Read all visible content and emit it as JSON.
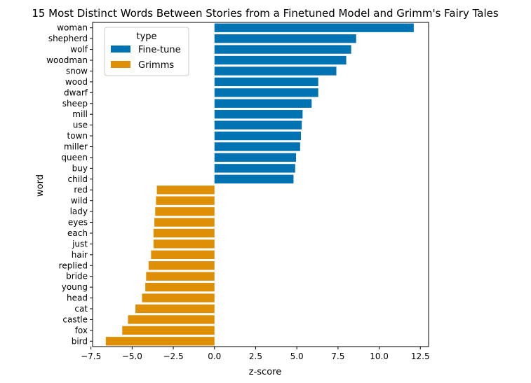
{
  "chart_data": {
    "type": "bar",
    "orientation": "horizontal",
    "title": "15 Most Distinct Words Between Stories from a Finetuned Model and Grimm's Fairy Tales",
    "xlabel": "z-score",
    "ylabel": "word",
    "xlim": [
      -7.4,
      13.0
    ],
    "xticks": [
      -7.5,
      -5.0,
      -2.5,
      0.0,
      2.5,
      5.0,
      7.5,
      10.0,
      12.5
    ],
    "xtick_labels": [
      "−7.5",
      "−5.0",
      "−2.5",
      "0.0",
      "2.5",
      "5.0",
      "7.5",
      "10.0",
      "12.5"
    ],
    "grid": false,
    "legend": {
      "title": "type",
      "placement": "top-left",
      "entries": [
        {
          "label": "Fine-tune",
          "color": "#0173b2"
        },
        {
          "label": "Grimms",
          "color": "#de8f05"
        }
      ]
    },
    "categories": [
      "woman",
      "shepherd",
      "wolf",
      "woodman",
      "snow",
      "wood",
      "dwarf",
      "sheep",
      "mill",
      "use",
      "town",
      "miller",
      "queen",
      "buy",
      "child",
      "red",
      "wild",
      "lady",
      "eyes",
      "each",
      "just",
      "hair",
      "replied",
      "bride",
      "young",
      "head",
      "cat",
      "castle",
      "fox",
      "bird"
    ],
    "values": [
      12.1,
      8.6,
      8.3,
      8.0,
      7.4,
      6.3,
      6.3,
      5.9,
      5.35,
      5.3,
      5.25,
      5.2,
      4.95,
      4.9,
      4.8,
      -3.5,
      -3.55,
      -3.6,
      -3.65,
      -3.7,
      -3.7,
      -3.85,
      -4.0,
      -4.15,
      -4.2,
      -4.4,
      -4.8,
      -5.25,
      -5.6,
      -6.6
    ],
    "series_type": [
      "Fine-tune",
      "Fine-tune",
      "Fine-tune",
      "Fine-tune",
      "Fine-tune",
      "Fine-tune",
      "Fine-tune",
      "Fine-tune",
      "Fine-tune",
      "Fine-tune",
      "Fine-tune",
      "Fine-tune",
      "Fine-tune",
      "Fine-tune",
      "Fine-tune",
      "Grimms",
      "Grimms",
      "Grimms",
      "Grimms",
      "Grimms",
      "Grimms",
      "Grimms",
      "Grimms",
      "Grimms",
      "Grimms",
      "Grimms",
      "Grimms",
      "Grimms",
      "Grimms",
      "Grimms"
    ],
    "colors": {
      "Fine-tune": "#0173b2",
      "Grimms": "#de8f05"
    }
  }
}
